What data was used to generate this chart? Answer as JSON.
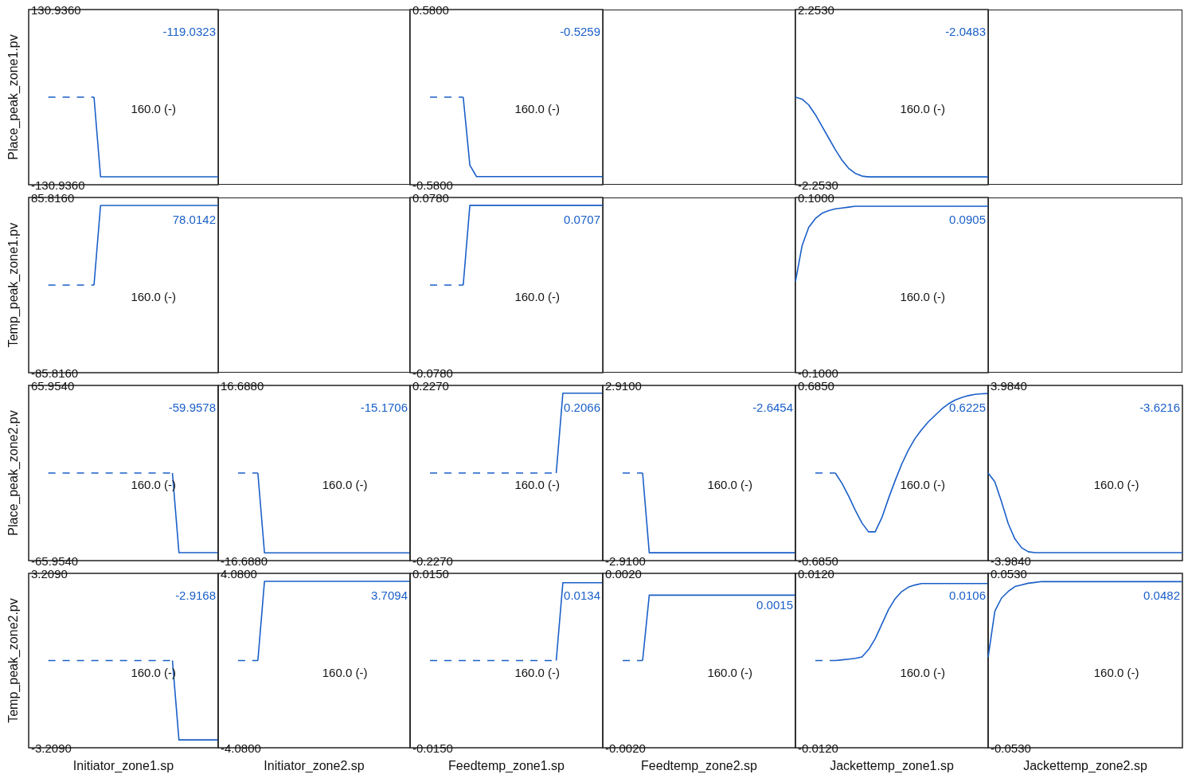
{
  "chart_data": [
    {
      "type": "line",
      "categories": [
        null,
        null,
        null,
        null,
        null,
        null,
        null,
        null,
        null,
        null,
        null,
        null,
        null,
        null,
        null,
        null,
        null,
        null,
        null,
        null,
        null,
        null,
        null,
        null,
        null,
        null,
        null,
        null,
        null,
        null
      ],
      "ylim": [
        -130.936,
        130.936
      ],
      "yticks": [
        {
          "value": -130.936,
          "label": "-130.9360"
        },
        {
          "value": 130.936,
          "label": "130.9360"
        }
      ],
      "tick_labels": "y",
      "ylabel": "Place_peak_zone1.pv",
      "annotations": [
        "-119.0323",
        "160.0 (-)"
      ],
      "series": [
        {
          "color": "#1a5fc8",
          "line_style": "dashed",
          "values": [
            null,
            null,
            null,
            0,
            0,
            0,
            0,
            0,
            0,
            0,
            0,
            null,
            null,
            null,
            null,
            null,
            null,
            null,
            null,
            null,
            null,
            null,
            null,
            null,
            null,
            null,
            null,
            null,
            null,
            null
          ]
        },
        {
          "color": "#1a5fc8",
          "values": [
            null,
            null,
            null,
            null,
            null,
            null,
            null,
            null,
            null,
            null,
            0,
            -119,
            -119,
            -119,
            -119,
            -119,
            -119,
            -119,
            -119,
            -119,
            -119,
            -119,
            -119,
            -119,
            -119,
            -119,
            -119,
            -119,
            -119,
            -119
          ]
        }
      ]
    },
    {
      "type": "other"
    },
    {
      "type": "line",
      "categories": [
        null,
        null,
        null,
        null,
        null,
        null,
        null,
        null,
        null,
        null,
        null,
        null,
        null,
        null,
        null,
        null,
        null,
        null,
        null,
        null,
        null,
        null,
        null,
        null,
        null,
        null,
        null,
        null,
        null,
        null
      ],
      "ylim": [
        -0.58,
        0.58
      ],
      "yticks": [
        {
          "value": -0.58,
          "label": "-0.5800"
        },
        {
          "value": 0.58,
          "label": "0.5800"
        }
      ],
      "tick_labels": "y",
      "annotations": [
        "-0.5259",
        "160.0 (-)"
      ],
      "series": [
        {
          "color": "#1a5fc8",
          "line_style": "dashed",
          "values": [
            null,
            null,
            null,
            0,
            0,
            0,
            0,
            0,
            0,
            null,
            null,
            null,
            null,
            null,
            null,
            null,
            null,
            null,
            null,
            null,
            null,
            null,
            null,
            null,
            null,
            null,
            null,
            null,
            null,
            null
          ]
        },
        {
          "color": "#1a5fc8",
          "values": [
            null,
            null,
            null,
            null,
            null,
            null,
            null,
            null,
            0,
            -0.45,
            -0.526,
            -0.526,
            -0.526,
            -0.526,
            -0.526,
            -0.526,
            -0.526,
            -0.526,
            -0.526,
            -0.526,
            -0.526,
            -0.526,
            -0.526,
            -0.526,
            -0.526,
            -0.526,
            -0.526,
            -0.526,
            -0.526,
            -0.526
          ]
        }
      ]
    },
    {
      "type": "other"
    },
    {
      "type": "line",
      "categories": [
        null,
        null,
        null,
        null,
        null,
        null,
        null,
        null,
        null,
        null,
        null,
        null,
        null,
        null,
        null,
        null,
        null,
        null,
        null,
        null,
        null,
        null,
        null,
        null,
        null,
        null,
        null,
        null,
        null,
        null
      ],
      "ylim": [
        -2.253,
        2.253
      ],
      "yticks": [
        {
          "value": -2.253,
          "label": "-2.2530"
        },
        {
          "value": 2.253,
          "label": "2.2530"
        }
      ],
      "tick_labels": "y",
      "annotations": [
        "-2.0483",
        "160.0 (-)"
      ],
      "series": [
        {
          "color": "#1a5fc8",
          "values": [
            0,
            -0.05,
            -0.2,
            -0.45,
            -0.75,
            -1.05,
            -1.35,
            -1.62,
            -1.83,
            -1.96,
            -2.03,
            -2.05,
            -2.05,
            -2.05,
            -2.05,
            -2.05,
            -2.05,
            -2.05,
            -2.05,
            -2.05,
            -2.05,
            -2.05,
            -2.05,
            -2.05,
            -2.05,
            -2.05,
            -2.05,
            -2.05,
            -2.05,
            -2.05
          ]
        }
      ]
    },
    {
      "type": "other"
    },
    {
      "type": "line",
      "categories": [
        null,
        null,
        null,
        null,
        null,
        null,
        null,
        null,
        null,
        null,
        null,
        null,
        null,
        null,
        null,
        null,
        null,
        null,
        null,
        null,
        null,
        null,
        null,
        null,
        null,
        null,
        null,
        null,
        null,
        null
      ],
      "ylim": [
        -85.816,
        85.816
      ],
      "yticks": [
        {
          "value": -85.816,
          "label": "-85.8160"
        },
        {
          "value": 85.816,
          "label": "85.8160"
        }
      ],
      "tick_labels": "y",
      "ylabel": "Temp_peak_zone1.pv",
      "annotations": [
        "78.0142",
        "160.0 (-)"
      ],
      "series": [
        {
          "color": "#1a5fc8",
          "line_style": "dashed",
          "values": [
            null,
            null,
            null,
            0,
            0,
            0,
            0,
            0,
            0,
            0,
            0,
            null,
            null,
            null,
            null,
            null,
            null,
            null,
            null,
            null,
            null,
            null,
            null,
            null,
            null,
            null,
            null,
            null,
            null,
            null
          ]
        },
        {
          "color": "#1a5fc8",
          "values": [
            null,
            null,
            null,
            null,
            null,
            null,
            null,
            null,
            null,
            null,
            0,
            78,
            78,
            78,
            78,
            78,
            78,
            78,
            78,
            78,
            78,
            78,
            78,
            78,
            78,
            78,
            78,
            78,
            78,
            78
          ]
        }
      ]
    },
    {
      "type": "other"
    },
    {
      "type": "line",
      "categories": [
        null,
        null,
        null,
        null,
        null,
        null,
        null,
        null,
        null,
        null,
        null,
        null,
        null,
        null,
        null,
        null,
        null,
        null,
        null,
        null,
        null,
        null,
        null,
        null,
        null,
        null,
        null,
        null,
        null,
        null
      ],
      "ylim": [
        -0.078,
        0.078
      ],
      "yticks": [
        {
          "value": -0.078,
          "label": "-0.0780"
        },
        {
          "value": 0.078,
          "label": "0.0780"
        }
      ],
      "tick_labels": "y",
      "annotations": [
        "0.0707",
        "160.0 (-)"
      ],
      "series": [
        {
          "color": "#1a5fc8",
          "line_style": "dashed",
          "values": [
            null,
            null,
            null,
            0,
            0,
            0,
            0,
            0,
            0,
            null,
            null,
            null,
            null,
            null,
            null,
            null,
            null,
            null,
            null,
            null,
            null,
            null,
            null,
            null,
            null,
            null,
            null,
            null,
            null,
            null
          ]
        },
        {
          "color": "#1a5fc8",
          "values": [
            null,
            null,
            null,
            null,
            null,
            null,
            null,
            null,
            0,
            0.071,
            0.071,
            0.071,
            0.071,
            0.071,
            0.071,
            0.071,
            0.071,
            0.071,
            0.071,
            0.071,
            0.071,
            0.071,
            0.071,
            0.071,
            0.071,
            0.071,
            0.071,
            0.071,
            0.071,
            0.071
          ]
        }
      ]
    },
    {
      "type": "other"
    },
    {
      "type": "line",
      "categories": [
        null,
        null,
        null,
        null,
        null,
        null,
        null,
        null,
        null,
        null,
        null,
        null,
        null,
        null,
        null,
        null,
        null,
        null,
        null,
        null,
        null,
        null,
        null,
        null,
        null,
        null,
        null,
        null,
        null,
        null
      ],
      "ylim": [
        -0.1,
        0.1
      ],
      "yticks": [
        {
          "value": -0.1,
          "label": "-0.1000"
        },
        {
          "value": 0.1,
          "label": "0.1000"
        }
      ],
      "tick_labels": "y",
      "annotations": [
        "0.0905",
        "160.0 (-)"
      ],
      "series": [
        {
          "color": "#1a5fc8",
          "values": [
            0.004,
            0.045,
            0.066,
            0.076,
            0.082,
            0.085,
            0.087,
            0.088,
            0.089,
            0.09,
            0.09,
            0.09,
            0.09,
            0.09,
            0.09,
            0.09,
            0.09,
            0.09,
            0.09,
            0.09,
            0.09,
            0.09,
            0.09,
            0.09,
            0.09,
            0.09,
            0.09,
            0.09,
            0.09,
            0.09
          ]
        }
      ]
    },
    {
      "type": "other"
    },
    {
      "type": "line",
      "categories": [
        null,
        null,
        null,
        null,
        null,
        null,
        null,
        null,
        null,
        null,
        null,
        null,
        null,
        null,
        null,
        null,
        null,
        null,
        null,
        null,
        null,
        null,
        null,
        null,
        null,
        null,
        null,
        null,
        null,
        null
      ],
      "ylim": [
        -65.954,
        65.954
      ],
      "yticks": [
        {
          "value": -65.954,
          "label": "-65.9540"
        },
        {
          "value": 65.954,
          "label": "65.9540"
        }
      ],
      "tick_labels": "y",
      "ylabel": "Place_peak_zone2.pv",
      "annotations": [
        "-59.9578",
        "160.0 (-)"
      ],
      "series": [
        {
          "color": "#1a5fc8",
          "line_style": "dashed",
          "values": [
            null,
            null,
            null,
            0,
            0,
            0,
            0,
            0,
            0,
            0,
            0,
            0,
            0,
            0,
            0,
            0,
            0,
            0,
            0,
            0,
            0,
            0,
            0,
            null,
            null,
            null,
            null,
            null,
            null,
            null
          ]
        },
        {
          "color": "#1a5fc8",
          "values": [
            null,
            null,
            null,
            null,
            null,
            null,
            null,
            null,
            null,
            null,
            null,
            null,
            null,
            null,
            null,
            null,
            null,
            null,
            null,
            null,
            null,
            null,
            0,
            -60,
            -60,
            -60,
            -60,
            -60,
            -60,
            -60
          ]
        }
      ]
    },
    {
      "type": "line",
      "categories": [
        null,
        null,
        null,
        null,
        null,
        null,
        null,
        null,
        null,
        null,
        null,
        null,
        null,
        null,
        null,
        null,
        null,
        null,
        null,
        null,
        null,
        null,
        null,
        null,
        null,
        null,
        null,
        null,
        null,
        null
      ],
      "ylim": [
        -16.688,
        16.688
      ],
      "yticks": [
        {
          "value": -16.688,
          "label": "-16.6880"
        },
        {
          "value": 16.688,
          "label": "16.6880"
        }
      ],
      "tick_labels": "y",
      "annotations": [
        "-15.1706",
        "160.0 (-)"
      ],
      "series": [
        {
          "color": "#1a5fc8",
          "line_style": "dashed",
          "values": [
            null,
            null,
            null,
            0,
            0,
            0,
            0,
            null,
            null,
            null,
            null,
            null,
            null,
            null,
            null,
            null,
            null,
            null,
            null,
            null,
            null,
            null,
            null,
            null,
            null,
            null,
            null,
            null,
            null,
            null
          ]
        },
        {
          "color": "#1a5fc8",
          "values": [
            null,
            null,
            null,
            null,
            null,
            null,
            0,
            -15.2,
            -15.2,
            -15.2,
            -15.2,
            -15.2,
            -15.2,
            -15.2,
            -15.2,
            -15.2,
            -15.2,
            -15.2,
            -15.2,
            -15.2,
            -15.2,
            -15.2,
            -15.2,
            -15.2,
            -15.2,
            -15.2,
            -15.2,
            -15.2,
            -15.2,
            -15.2
          ]
        }
      ]
    },
    {
      "type": "line",
      "categories": [
        null,
        null,
        null,
        null,
        null,
        null,
        null,
        null,
        null,
        null,
        null,
        null,
        null,
        null,
        null,
        null,
        null,
        null,
        null,
        null,
        null,
        null,
        null,
        null,
        null,
        null,
        null,
        null,
        null,
        null
      ],
      "ylim": [
        -0.227,
        0.227
      ],
      "yticks": [
        {
          "value": -0.227,
          "label": "-0.2270"
        },
        {
          "value": 0.227,
          "label": "0.2270"
        }
      ],
      "tick_labels": "y",
      "annotations": [
        "0.2066",
        "160.0 (-)"
      ],
      "series": [
        {
          "color": "#1a5fc8",
          "line_style": "dashed",
          "values": [
            null,
            null,
            null,
            0,
            0,
            0,
            0,
            0,
            0,
            0,
            0,
            0,
            0,
            0,
            0,
            0,
            0,
            0,
            0,
            0,
            0,
            0,
            0,
            null,
            null,
            null,
            null,
            null,
            null,
            null
          ]
        },
        {
          "color": "#1a5fc8",
          "values": [
            null,
            null,
            null,
            null,
            null,
            null,
            null,
            null,
            null,
            null,
            null,
            null,
            null,
            null,
            null,
            null,
            null,
            null,
            null,
            null,
            null,
            null,
            0,
            0.207,
            0.207,
            0.207,
            0.207,
            0.207,
            0.207,
            0.207
          ]
        }
      ]
    },
    {
      "type": "line",
      "categories": [
        null,
        null,
        null,
        null,
        null,
        null,
        null,
        null,
        null,
        null,
        null,
        null,
        null,
        null,
        null,
        null,
        null,
        null,
        null,
        null,
        null,
        null,
        null,
        null,
        null,
        null,
        null,
        null,
        null,
        null
      ],
      "ylim": [
        -2.91,
        2.91
      ],
      "yticks": [
        {
          "value": -2.91,
          "label": "-2.9100"
        },
        {
          "value": 2.91,
          "label": "2.9100"
        }
      ],
      "tick_labels": "y",
      "annotations": [
        "-2.6454",
        "160.0 (-)"
      ],
      "series": [
        {
          "color": "#1a5fc8",
          "line_style": "dashed",
          "values": [
            null,
            null,
            null,
            0,
            0,
            0,
            0,
            null,
            null,
            null,
            null,
            null,
            null,
            null,
            null,
            null,
            null,
            null,
            null,
            null,
            null,
            null,
            null,
            null,
            null,
            null,
            null,
            null,
            null,
            null
          ]
        },
        {
          "color": "#1a5fc8",
          "values": [
            null,
            null,
            null,
            null,
            null,
            null,
            0,
            -2.65,
            -2.65,
            -2.65,
            -2.65,
            -2.65,
            -2.65,
            -2.65,
            -2.65,
            -2.65,
            -2.65,
            -2.65,
            -2.65,
            -2.65,
            -2.65,
            -2.65,
            -2.65,
            -2.65,
            -2.65,
            -2.65,
            -2.65,
            -2.65,
            -2.65,
            -2.65
          ]
        }
      ]
    },
    {
      "type": "line",
      "categories": [
        null,
        null,
        null,
        null,
        null,
        null,
        null,
        null,
        null,
        null,
        null,
        null,
        null,
        null,
        null,
        null,
        null,
        null,
        null,
        null,
        null,
        null,
        null,
        null,
        null,
        null,
        null,
        null,
        null,
        null
      ],
      "ylim": [
        -0.685,
        0.685
      ],
      "yticks": [
        {
          "value": -0.685,
          "label": "-0.6850"
        },
        {
          "value": 0.685,
          "label": "0.6850"
        }
      ],
      "tick_labels": "y",
      "annotations": [
        "0.6225",
        "160.0 (-)"
      ],
      "series": [
        {
          "color": "#1a5fc8",
          "line_style": "dashed",
          "values": [
            null,
            null,
            null,
            0,
            0,
            0,
            0,
            null,
            null,
            null,
            null,
            null,
            null,
            null,
            null,
            null,
            null,
            null,
            null,
            null,
            null,
            null,
            null,
            null,
            null,
            null,
            null,
            null,
            null,
            null
          ]
        },
        {
          "color": "#1a5fc8",
          "values": [
            null,
            null,
            null,
            null,
            null,
            null,
            0,
            -0.08,
            -0.18,
            -0.29,
            -0.39,
            -0.46,
            -0.46,
            -0.35,
            -0.2,
            -0.06,
            0.07,
            0.18,
            0.27,
            0.34,
            0.4,
            0.45,
            0.5,
            0.54,
            0.57,
            0.59,
            0.605,
            0.615,
            0.62,
            0.622
          ]
        }
      ]
    },
    {
      "type": "line",
      "categories": [
        null,
        null,
        null,
        null,
        null,
        null,
        null,
        null,
        null,
        null,
        null,
        null,
        null,
        null,
        null,
        null,
        null,
        null,
        null,
        null,
        null,
        null,
        null,
        null,
        null,
        null,
        null,
        null,
        null,
        null
      ],
      "ylim": [
        -3.984,
        3.984
      ],
      "yticks": [
        {
          "value": -3.984,
          "label": "-3.9840"
        },
        {
          "value": 3.984,
          "label": "3.9840"
        }
      ],
      "tick_labels": "y",
      "annotations": [
        "-3.6216",
        "160.0 (-)"
      ],
      "series": [
        {
          "color": "#1a5fc8",
          "values": [
            0,
            -0.4,
            -1.3,
            -2.3,
            -3.0,
            -3.4,
            -3.58,
            -3.62,
            -3.62,
            -3.62,
            -3.62,
            -3.62,
            -3.62,
            -3.62,
            -3.62,
            -3.62,
            -3.62,
            -3.62,
            -3.62,
            -3.62,
            -3.62,
            -3.62,
            -3.62,
            -3.62,
            -3.62,
            -3.62,
            -3.62,
            -3.62,
            -3.62,
            -3.62
          ]
        }
      ]
    },
    {
      "type": "line",
      "categories": [
        null,
        null,
        null,
        null,
        null,
        null,
        null,
        null,
        null,
        null,
        null,
        null,
        null,
        null,
        null,
        null,
        null,
        null,
        null,
        null,
        null,
        null,
        null,
        null,
        null,
        null,
        null,
        null,
        null,
        null
      ],
      "ylim": [
        -3.209,
        3.209
      ],
      "yticks": [
        {
          "value": -3.209,
          "label": "-3.2090"
        },
        {
          "value": 3.209,
          "label": "3.2090"
        }
      ],
      "tick_labels": "y",
      "ylabel": "Temp_peak_zone2.pv",
      "xlabel": "Initiator_zone1.sp",
      "annotations": [
        "-2.9168",
        "160.0 (-)"
      ],
      "series": [
        {
          "color": "#1a5fc8",
          "line_style": "dashed",
          "values": [
            null,
            null,
            null,
            0,
            0,
            0,
            0,
            0,
            0,
            0,
            0,
            0,
            0,
            0,
            0,
            0,
            0,
            0,
            0,
            0,
            0,
            0,
            0,
            null,
            null,
            null,
            null,
            null,
            null,
            null
          ]
        },
        {
          "color": "#1a5fc8",
          "values": [
            null,
            null,
            null,
            null,
            null,
            null,
            null,
            null,
            null,
            null,
            null,
            null,
            null,
            null,
            null,
            null,
            null,
            null,
            null,
            null,
            null,
            null,
            0,
            -2.92,
            -2.92,
            -2.92,
            -2.92,
            -2.92,
            -2.92,
            -2.92
          ]
        }
      ]
    },
    {
      "type": "line",
      "categories": [
        null,
        null,
        null,
        null,
        null,
        null,
        null,
        null,
        null,
        null,
        null,
        null,
        null,
        null,
        null,
        null,
        null,
        null,
        null,
        null,
        null,
        null,
        null,
        null,
        null,
        null,
        null,
        null,
        null,
        null
      ],
      "ylim": [
        -4.08,
        4.08
      ],
      "yticks": [
        {
          "value": -4.08,
          "label": "-4.0800"
        },
        {
          "value": 4.08,
          "label": "4.0800"
        }
      ],
      "tick_labels": "y",
      "xlabel": "Initiator_zone2.sp",
      "annotations": [
        "3.7094",
        "160.0 (-)"
      ],
      "series": [
        {
          "color": "#1a5fc8",
          "line_style": "dashed",
          "values": [
            null,
            null,
            null,
            0,
            0,
            0,
            0,
            null,
            null,
            null,
            null,
            null,
            null,
            null,
            null,
            null,
            null,
            null,
            null,
            null,
            null,
            null,
            null,
            null,
            null,
            null,
            null,
            null,
            null,
            null
          ]
        },
        {
          "color": "#1a5fc8",
          "values": [
            null,
            null,
            null,
            null,
            null,
            null,
            0,
            3.71,
            3.71,
            3.71,
            3.71,
            3.71,
            3.71,
            3.71,
            3.71,
            3.71,
            3.71,
            3.71,
            3.71,
            3.71,
            3.71,
            3.71,
            3.71,
            3.71,
            3.71,
            3.71,
            3.71,
            3.71,
            3.71,
            3.71
          ]
        }
      ]
    },
    {
      "type": "line",
      "categories": [
        null,
        null,
        null,
        null,
        null,
        null,
        null,
        null,
        null,
        null,
        null,
        null,
        null,
        null,
        null,
        null,
        null,
        null,
        null,
        null,
        null,
        null,
        null,
        null,
        null,
        null,
        null,
        null,
        null,
        null
      ],
      "ylim": [
        -0.015,
        0.015
      ],
      "yticks": [
        {
          "value": -0.015,
          "label": "-0.0150"
        },
        {
          "value": 0.015,
          "label": "0.0150"
        }
      ],
      "tick_labels": "y",
      "xlabel": "Feedtemp_zone1.sp",
      "annotations": [
        "0.0134",
        "160.0 (-)"
      ],
      "series": [
        {
          "color": "#1a5fc8",
          "line_style": "dashed",
          "values": [
            null,
            null,
            null,
            0,
            0,
            0,
            0,
            0,
            0,
            0,
            0,
            0,
            0,
            0,
            0,
            0,
            0,
            0,
            0,
            0,
            0,
            0,
            0,
            null,
            null,
            null,
            null,
            null,
            null,
            null
          ]
        },
        {
          "color": "#1a5fc8",
          "values": [
            null,
            null,
            null,
            null,
            null,
            null,
            null,
            null,
            null,
            null,
            null,
            null,
            null,
            null,
            null,
            null,
            null,
            null,
            null,
            null,
            null,
            null,
            0,
            0.0134,
            0.0134,
            0.0134,
            0.0134,
            0.0134,
            0.0134,
            0.0134
          ]
        }
      ]
    },
    {
      "type": "line",
      "categories": [
        null,
        null,
        null,
        null,
        null,
        null,
        null,
        null,
        null,
        null,
        null,
        null,
        null,
        null,
        null,
        null,
        null,
        null,
        null,
        null,
        null,
        null,
        null,
        null,
        null,
        null,
        null,
        null,
        null,
        null
      ],
      "ylim": [
        -0.002,
        0.002
      ],
      "yticks": [
        {
          "value": -0.002,
          "label": "-0.0020"
        },
        {
          "value": 0.002,
          "label": "0.0020"
        }
      ],
      "tick_labels": "y",
      "xlabel": "Feedtemp_zone2.sp",
      "annotations": [
        "0.0015",
        "160.0 (-)"
      ],
      "series": [
        {
          "color": "#1a5fc8",
          "line_style": "dashed",
          "values": [
            null,
            null,
            null,
            0,
            0,
            0,
            0,
            null,
            null,
            null,
            null,
            null,
            null,
            null,
            null,
            null,
            null,
            null,
            null,
            null,
            null,
            null,
            null,
            null,
            null,
            null,
            null,
            null,
            null,
            null
          ]
        },
        {
          "color": "#1a5fc8",
          "values": [
            null,
            null,
            null,
            null,
            null,
            null,
            0,
            0.0015,
            0.0015,
            0.0015,
            0.0015,
            0.0015,
            0.0015,
            0.0015,
            0.0015,
            0.0015,
            0.0015,
            0.0015,
            0.0015,
            0.0015,
            0.0015,
            0.0015,
            0.0015,
            0.0015,
            0.0015,
            0.0015,
            0.0015,
            0.0015,
            0.0015,
            0.0015
          ]
        }
      ]
    },
    {
      "type": "line",
      "categories": [
        null,
        null,
        null,
        null,
        null,
        null,
        null,
        null,
        null,
        null,
        null,
        null,
        null,
        null,
        null,
        null,
        null,
        null,
        null,
        null,
        null,
        null,
        null,
        null,
        null,
        null,
        null,
        null,
        null,
        null
      ],
      "ylim": [
        -0.012,
        0.012
      ],
      "yticks": [
        {
          "value": -0.012,
          "label": "-0.0120"
        },
        {
          "value": 0.012,
          "label": "0.0120"
        }
      ],
      "tick_labels": "y",
      "xlabel": "Jackettemp_zone1.sp",
      "annotations": [
        "0.0106",
        "160.0 (-)"
      ],
      "series": [
        {
          "color": "#1a5fc8",
          "line_style": "dashed",
          "values": [
            null,
            null,
            null,
            0,
            0,
            0,
            0,
            null,
            null,
            null,
            null,
            null,
            null,
            null,
            null,
            null,
            null,
            null,
            null,
            null,
            null,
            null,
            null,
            null,
            null,
            null,
            null,
            null,
            null,
            null
          ]
        },
        {
          "color": "#1a5fc8",
          "values": [
            null,
            null,
            null,
            null,
            null,
            null,
            0,
            0.0001,
            0.0002,
            0.0003,
            0.0005,
            0.0015,
            0.003,
            0.005,
            0.007,
            0.0085,
            0.0095,
            0.0101,
            0.0104,
            0.0106,
            0.0106,
            0.0106,
            0.0106,
            0.0106,
            0.0106,
            0.0106,
            0.0106,
            0.0106,
            0.0106,
            0.0106
          ]
        }
      ]
    },
    {
      "type": "line",
      "categories": [
        null,
        null,
        null,
        null,
        null,
        null,
        null,
        null,
        null,
        null,
        null,
        null,
        null,
        null,
        null,
        null,
        null,
        null,
        null,
        null,
        null,
        null,
        null,
        null,
        null,
        null,
        null,
        null,
        null,
        null
      ],
      "ylim": [
        -0.053,
        0.053
      ],
      "yticks": [
        {
          "value": -0.053,
          "label": "-0.0530"
        },
        {
          "value": 0.053,
          "label": "0.0530"
        }
      ],
      "tick_labels": "y",
      "xlabel": "Jackettemp_zone2.sp",
      "annotations": [
        "0.0482",
        "160.0 (-)"
      ],
      "series": [
        {
          "color": "#1a5fc8",
          "values": [
            0.002,
            0.03,
            0.038,
            0.042,
            0.045,
            0.046,
            0.047,
            0.0475,
            0.048,
            0.048,
            0.048,
            0.048,
            0.048,
            0.048,
            0.048,
            0.048,
            0.048,
            0.048,
            0.048,
            0.048,
            0.048,
            0.048,
            0.048,
            0.048,
            0.048,
            0.048,
            0.048,
            0.048,
            0.048,
            0.048
          ]
        }
      ]
    }
  ]
}
